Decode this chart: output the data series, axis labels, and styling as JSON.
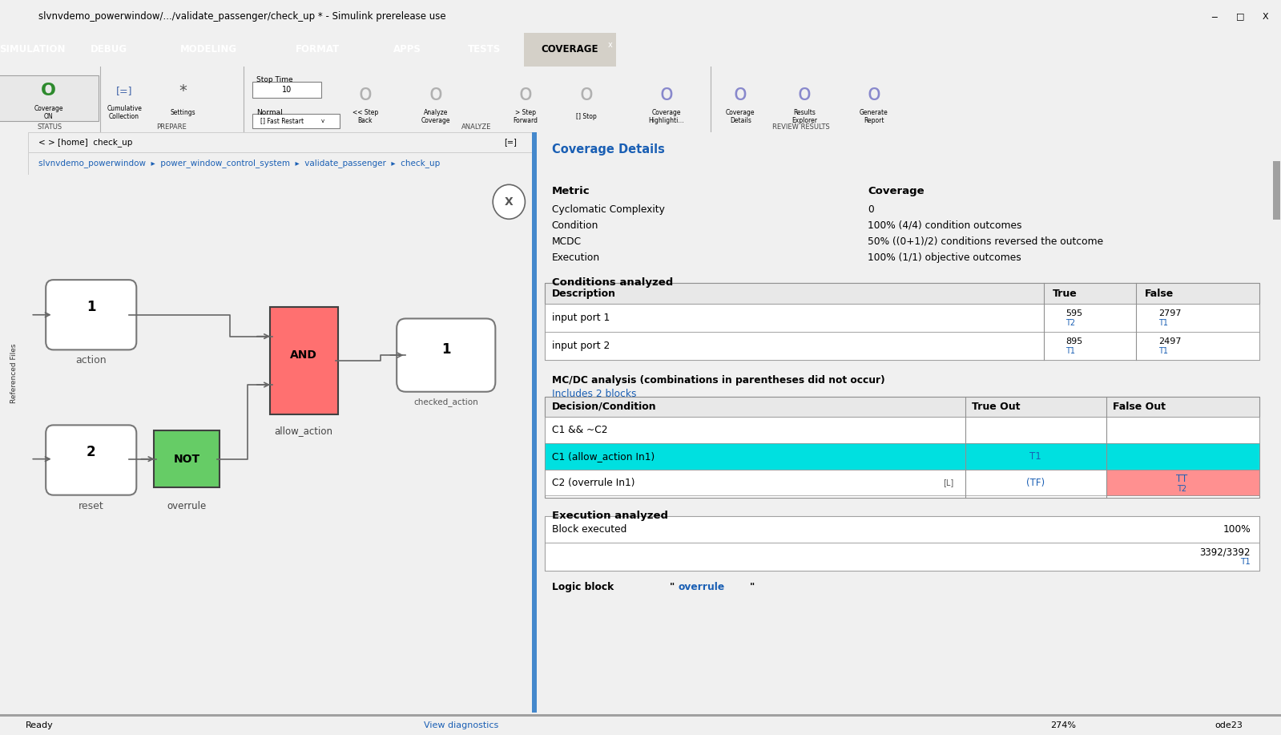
{
  "title": "slvnvdemo_powerwindow/.../validate_passenger/check_up * - Simulink prerelease use",
  "tab_items": [
    "SIMULATION",
    "DEBUG",
    "MODELING",
    "FORMAT",
    "APPS",
    "TESTS",
    "COVERAGE"
  ],
  "active_tab": "COVERAGE",
  "toolbar_bg": "#1e4d78",
  "window_bg": "#d4d0c8",
  "canvas_bg": "#c8c8c8",
  "panel_bg": "#f0f0f0",
  "coverage_panel_bg": "#ffffff",
  "nav_path": "slvnvdemo_powerwindow  ▸  power_window_control_system  ▸  validate_passenger  ▸  check_up",
  "metric_title": "Metric",
  "coverage_title": "Coverage",
  "metrics": [
    [
      "Cyclomatic Complexity",
      "0"
    ],
    [
      "Condition",
      "100% (4/4) condition outcomes"
    ],
    [
      "MCDC",
      "50% ((0+1)/2) conditions reversed the outcome"
    ],
    [
      "Execution",
      "100% (1/1) objective outcomes"
    ]
  ],
  "conditions_analyzed_title": "Conditions analyzed",
  "conditions_table_headers": [
    "Description",
    "True",
    "False"
  ],
  "conditions_rows": [
    [
      "input port 1",
      "595\nT2",
      "2797\nT1"
    ],
    [
      "input port 2",
      "895\nT1",
      "2497\nT1"
    ]
  ],
  "mcdc_title": "MC/DC analysis (combinations in parentheses did not occur)",
  "mcdc_link": "Includes 2 blocks",
  "mcdc_table_headers": [
    "Decision/Condition",
    "True Out",
    "False Out"
  ],
  "mcdc_rows": [
    [
      "C1 && ~C2",
      "",
      ""
    ],
    [
      "C1 (allow_action In1)",
      "T1",
      ""
    ],
    [
      "C2 (overrule In1)",
      "(TF)",
      "TT\nT2"
    ]
  ],
  "mcdc_row1_highlight_color": "#00e0e0",
  "mcdc_row2_trueout_color": "#ff9090",
  "execution_title": "Execution analyzed",
  "execution_rows": [
    [
      "Block executed",
      "100%"
    ],
    [
      "",
      "3392/3392\nT1"
    ]
  ],
  "logic_block_text": "Logic block ",
  "logic_block_link": "overrule",
  "and_block_color": "#ff7070",
  "not_block_color": "#66cc66",
  "link_color": "#1a5fb4",
  "header_bg": "#e8e8e8",
  "table_border": "#909090"
}
